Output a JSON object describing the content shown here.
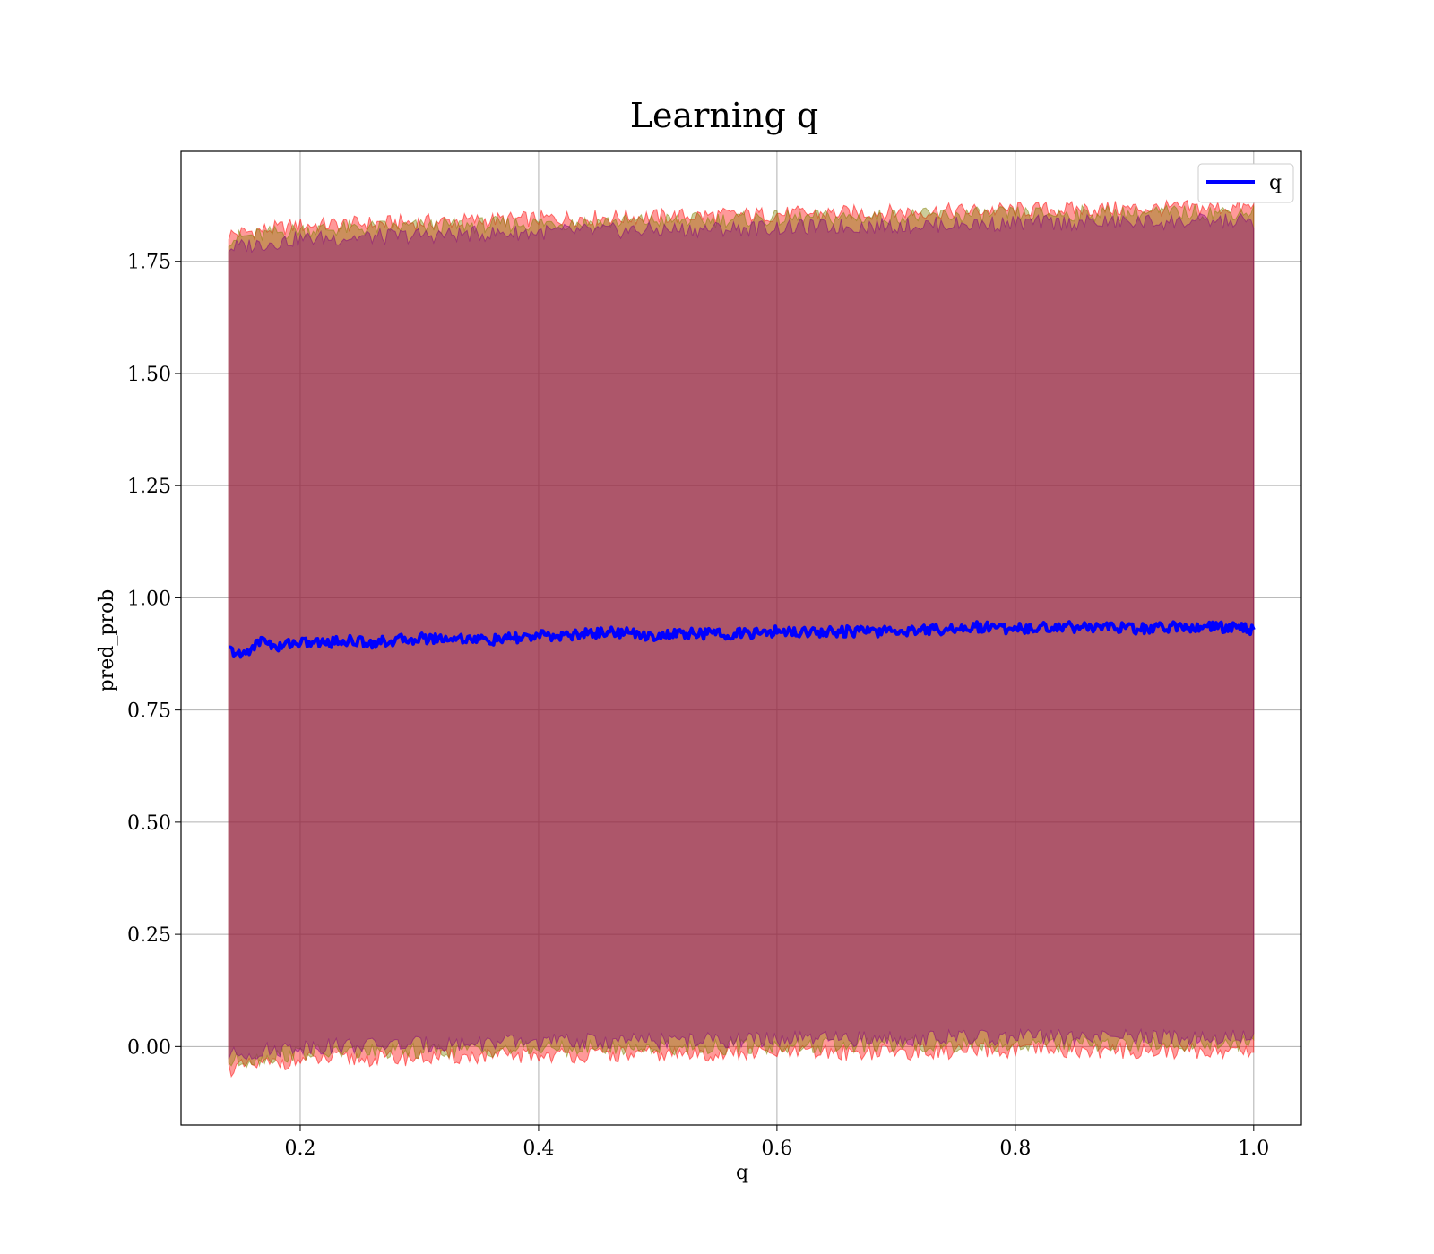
{
  "chart_data": {
    "type": "line",
    "title": "Learning q",
    "xlabel": "q",
    "ylabel": "pred_prob",
    "xlim": [
      0.1,
      1.04
    ],
    "ylim": [
      -0.175,
      1.995
    ],
    "xticks": [
      0.2,
      0.4,
      0.6,
      0.8,
      1.0
    ],
    "xtick_labels": [
      "0.2",
      "0.4",
      "0.6",
      "0.8",
      "1.0"
    ],
    "yticks": [
      0.0,
      0.25,
      0.5,
      0.75,
      1.0,
      1.25,
      1.5,
      1.75
    ],
    "ytick_labels": [
      "0.00",
      "0.25",
      "0.50",
      "0.75",
      "1.00",
      "1.25",
      "1.50",
      "1.75"
    ],
    "grid": true,
    "legend": {
      "position": "top-right",
      "entries": [
        "q"
      ]
    },
    "series": [
      {
        "name": "q",
        "color": "#0000ff",
        "x": [
          0.14,
          0.15,
          0.16,
          0.17,
          0.18,
          0.19,
          0.2,
          0.22,
          0.24,
          0.26,
          0.28,
          0.3,
          0.32,
          0.34,
          0.36,
          0.38,
          0.4,
          0.42,
          0.44,
          0.46,
          0.48,
          0.5,
          0.52,
          0.54,
          0.56,
          0.58,
          0.6,
          0.62,
          0.64,
          0.66,
          0.68,
          0.7,
          0.72,
          0.74,
          0.76,
          0.78,
          0.8,
          0.82,
          0.84,
          0.86,
          0.88,
          0.9,
          0.92,
          0.94,
          0.96,
          0.98,
          1.0
        ],
        "y": [
          0.885,
          0.87,
          0.89,
          0.91,
          0.885,
          0.9,
          0.9,
          0.9,
          0.905,
          0.9,
          0.905,
          0.91,
          0.91,
          0.91,
          0.905,
          0.91,
          0.915,
          0.915,
          0.92,
          0.925,
          0.92,
          0.915,
          0.92,
          0.92,
          0.92,
          0.92,
          0.925,
          0.925,
          0.925,
          0.925,
          0.925,
          0.925,
          0.93,
          0.93,
          0.935,
          0.935,
          0.93,
          0.935,
          0.935,
          0.935,
          0.935,
          0.93,
          0.935,
          0.935,
          0.935,
          0.935,
          0.93
        ]
      }
    ],
    "bands": [
      {
        "color": "#ff0000",
        "opacity": 0.4,
        "x": [
          0.14,
          0.2,
          0.4,
          0.6,
          0.8,
          1.0
        ],
        "upper": [
          1.81,
          1.83,
          1.845,
          1.855,
          1.865,
          1.87
        ],
        "lower": [
          -0.05,
          -0.03,
          -0.02,
          -0.015,
          -0.01,
          -0.01
        ]
      },
      {
        "color": "#808000",
        "opacity": 0.4,
        "x": [
          0.14,
          0.2,
          0.4,
          0.6,
          0.8,
          1.0
        ],
        "upper": [
          1.8,
          1.82,
          1.835,
          1.845,
          1.855,
          1.86
        ],
        "lower": [
          -0.035,
          -0.015,
          -0.005,
          0.0,
          0.005,
          0.005
        ]
      },
      {
        "color": "#800080",
        "opacity": 0.4,
        "x": [
          0.14,
          0.2,
          0.4,
          0.6,
          0.8,
          1.0
        ],
        "upper": [
          1.78,
          1.8,
          1.815,
          1.825,
          1.835,
          1.84
        ],
        "lower": [
          -0.02,
          0.0,
          0.01,
          0.015,
          0.02,
          0.02
        ]
      }
    ]
  }
}
